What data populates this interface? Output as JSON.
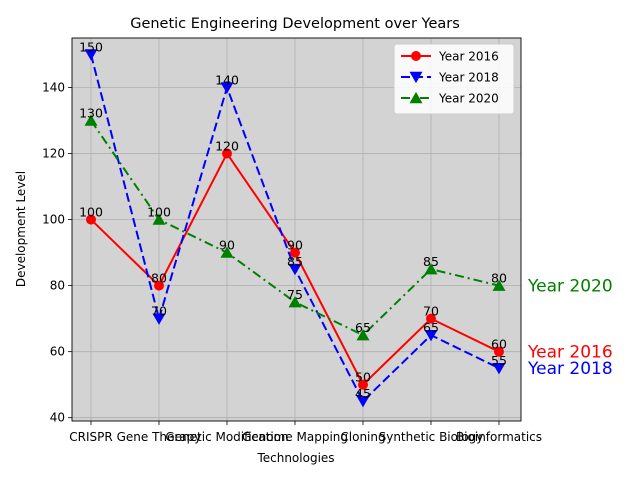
{
  "chart_data": {
    "type": "line",
    "title": "Genetic Engineering Development over Years",
    "xlabel": "Technologies",
    "ylabel": "Development Level",
    "categories": [
      "CRISPR",
      "Gene Therapy",
      "Genetic Modification",
      "Genome Mapping",
      "Cloning",
      "Synthetic Biology",
      "Bioinformatics"
    ],
    "ylim": [
      39,
      155
    ],
    "yticks": [
      40,
      60,
      80,
      100,
      120,
      140
    ],
    "grid": true,
    "background": "#d3d3d3",
    "legend_position": "top-right",
    "series": [
      {
        "name": "Year 2016",
        "values": [
          100,
          80,
          120,
          90,
          50,
          70,
          60
        ],
        "color": "#ff0000",
        "linestyle": "solid",
        "marker": "circle"
      },
      {
        "name": "Year 2018",
        "values": [
          150,
          70,
          140,
          85,
          45,
          65,
          55
        ],
        "color": "#0000ff",
        "linestyle": "dashed",
        "marker": "triangle-down"
      },
      {
        "name": "Year 2020",
        "values": [
          130,
          100,
          90,
          75,
          65,
          85,
          80
        ],
        "color": "#008000",
        "linestyle": "dashdot",
        "marker": "triangle-up"
      }
    ],
    "end_labels": [
      {
        "text": "Year 2020",
        "color": "#008000",
        "value": 80
      },
      {
        "text": "Year 2016",
        "color": "#ff0000",
        "value": 60
      },
      {
        "text": "Year 2018",
        "color": "#0000ff",
        "value": 55
      }
    ]
  }
}
